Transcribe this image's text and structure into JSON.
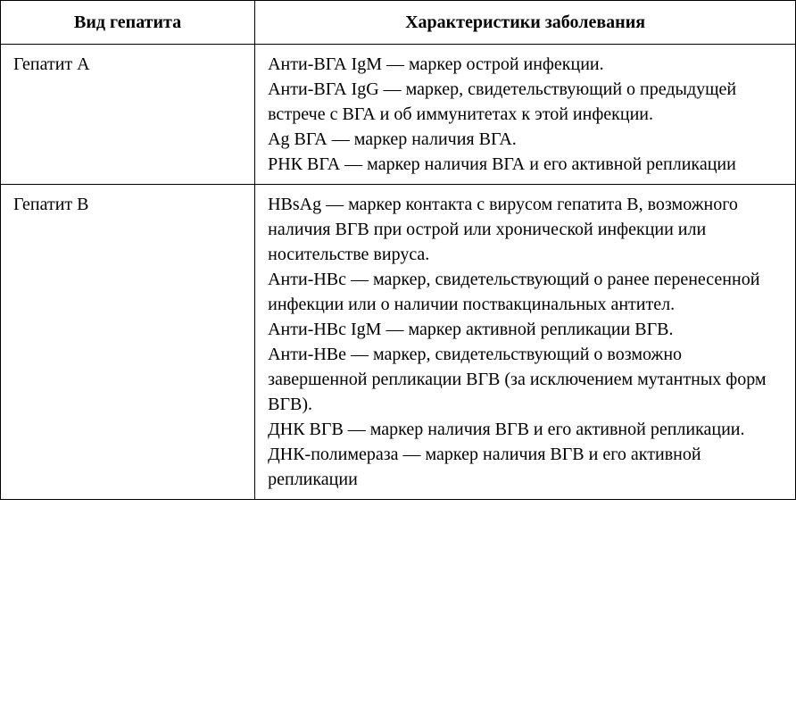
{
  "table": {
    "headers": [
      "Вид гепатита",
      "Характеристики заболевания"
    ],
    "rows": [
      {
        "type": "Гепатит А",
        "desc": "Анти-ВГА IgM — маркер острой инфекции.\nАнти-ВГА IgG — маркер, свидетельствующий о предыдущей встрече с ВГА и об иммунитетах к этой инфекции.\nAg ВГА — маркер наличия ВГА.\nРНК ВГА — маркер наличия ВГА и его активной репликации"
      },
      {
        "type": "Гепатит В",
        "desc": "HBsAg — маркер контакта с вирусом гепатита В, возможного наличия ВГВ при острой или хронической инфекции или носительстве вируса.\nАнти-НВс — маркер, свидетельствующий о ранее перенесенной инфекции или о наличии поствакцинальных антител.\nАнти-НВс IgM — маркер активной репликации ВГВ.\nАнти-НВе — маркер, свидетельствующий о возможно завершенной репликации ВГВ (за исключением мутантных форм ВГВ).\nДНК ВГВ — маркер наличия ВГВ и его активной репликации.\nДНК-полимераза — маркер наличия ВГВ и его активной репликации"
      }
    ],
    "fontsize": 20,
    "border_color": "#000000",
    "background_color": "#ffffff",
    "text_color": "#000000",
    "col_widths_pct": [
      32,
      68
    ]
  }
}
